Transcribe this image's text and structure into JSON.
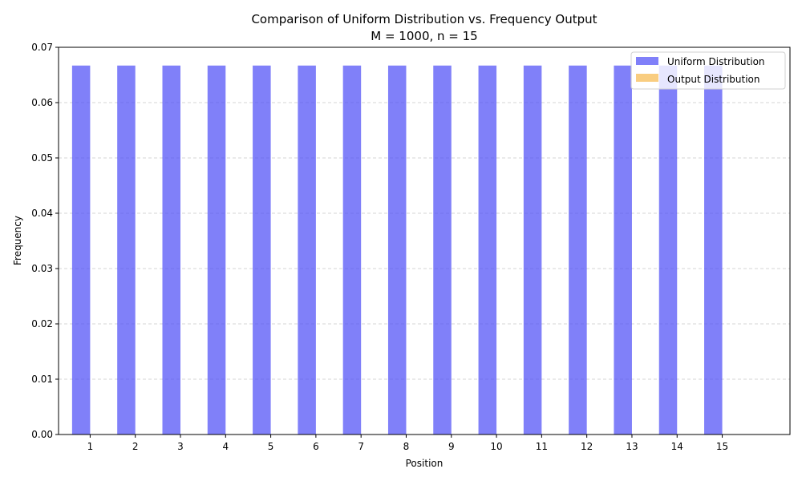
{
  "chart_data": {
    "type": "bar",
    "title_line1": "Comparison of Uniform Distribution vs. Frequency Output",
    "title_line2": "M = 1000, n = 15",
    "xlabel": "Position",
    "ylabel": "Frequency",
    "categories": [
      "1",
      "2",
      "3",
      "4",
      "5",
      "6",
      "7",
      "8",
      "9",
      "10",
      "11",
      "12",
      "13",
      "14",
      "15"
    ],
    "ylim": [
      0,
      0.07
    ],
    "yticks": [
      "0.00",
      "0.01",
      "0.02",
      "0.03",
      "0.04",
      "0.05",
      "0.06",
      "0.07"
    ],
    "ytick_values": [
      0,
      0.01,
      0.02,
      0.03,
      0.04,
      0.05,
      0.06,
      0.07
    ],
    "grid": "y-dashed",
    "legend_position": "top-right",
    "series": [
      {
        "name": "Uniform Distribution",
        "color": "#4a4af7",
        "values": [
          0.0667,
          0.0667,
          0.0667,
          0.0667,
          0.0667,
          0.0667,
          0.0667,
          0.0667,
          0.0667,
          0.0667,
          0.0667,
          0.0667,
          0.0667,
          0.0667,
          0.0667
        ]
      },
      {
        "name": "Output Distribution",
        "color": "#f7b84a",
        "values": [
          0,
          0,
          0,
          0,
          0,
          0,
          0,
          0,
          0,
          0,
          0,
          0,
          0,
          0,
          0
        ]
      }
    ]
  }
}
